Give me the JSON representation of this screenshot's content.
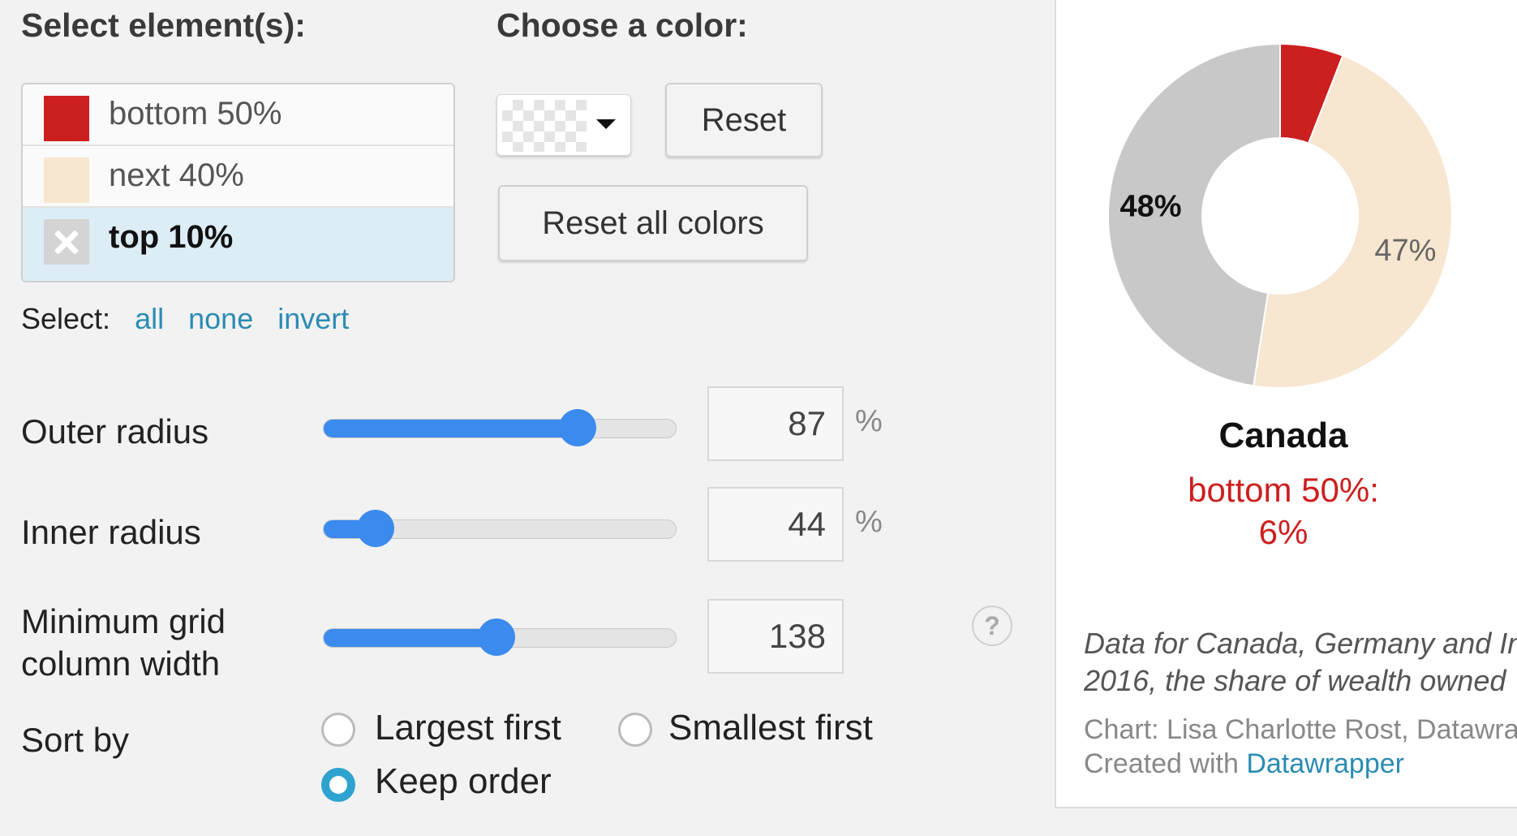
{
  "labels": {
    "select_elements": "Select element(s):",
    "choose_color": "Choose a color:"
  },
  "elements": [
    {
      "label": "bottom 50%",
      "color": "#cc1f1f",
      "selected": false
    },
    {
      "label": "next 40%",
      "color": "#f7e6d0",
      "selected": false
    },
    {
      "label": "top 10%",
      "color": "#d4d4d4",
      "selected": true
    }
  ],
  "select_links": {
    "prefix": "Select:",
    "all": "all",
    "none": "none",
    "invert": "invert"
  },
  "buttons": {
    "reset": "Reset",
    "reset_all": "Reset all colors"
  },
  "sliders": {
    "outer_radius": {
      "label": "Outer radius",
      "value": "87",
      "unit": "%",
      "fraction": 0.72
    },
    "inner_radius": {
      "label": "Inner radius",
      "value": "44",
      "unit": "%",
      "fraction": 0.15
    },
    "min_grid_width": {
      "label_line1": "Minimum grid",
      "label_line2": "column width",
      "value": "138",
      "fraction": 0.49
    }
  },
  "help_icon": "?",
  "sort": {
    "label": "Sort by",
    "options": [
      "Largest first",
      "Smallest first",
      "Keep order"
    ],
    "selected": "Keep order"
  },
  "preview": {
    "title": "Canada",
    "tooltip_line1": "bottom 50%:",
    "tooltip_line2": "6%",
    "description_line1": "Data for Canada, Germany and In",
    "description_line2": "2016, the share of wealth owned",
    "credit_line1": "Chart: Lisa Charlotte Rost, Datawra",
    "credit_prefix": "Created with",
    "credit_link": "Datawrapper"
  },
  "chart_data": {
    "type": "pie",
    "categories": [
      "bottom 50%",
      "next 40%",
      "top 10%"
    ],
    "values": [
      6,
      47,
      48
    ],
    "colors": [
      "#cc1f1f",
      "#f7e6d0",
      "#c8c8c8"
    ],
    "labels": [
      "",
      "47%",
      "48%"
    ],
    "donut": true
  }
}
